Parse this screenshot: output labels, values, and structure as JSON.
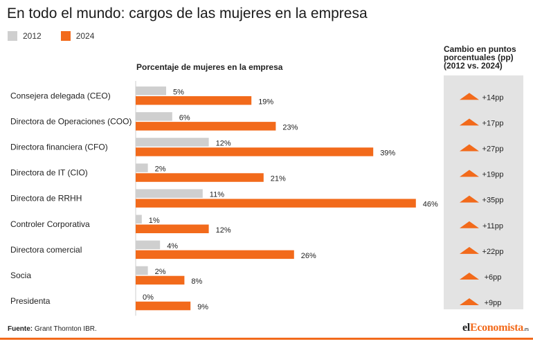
{
  "title": "En todo el mundo: cargos de las mujeres en la empresa",
  "legend": [
    {
      "label": "2012",
      "color": "#cfcfcf"
    },
    {
      "label": "2024",
      "color": "#f26a1b"
    }
  ],
  "subheading": "Porcentaje de mujeres en la empresa",
  "change_header": "Cambio en puntos porcentuales (pp) (2012 vs. 2024)",
  "change_icon": "up-triangle-icon",
  "source_label": "Fuente:",
  "source_text": "Grant Thornton IBR.",
  "brand": {
    "part1": "el",
    "part2": "Economista",
    "suffix": ".es"
  },
  "chart_data": {
    "type": "bar",
    "orientation": "horizontal",
    "categories": [
      "Consejera delegada (CEO)",
      "Directora de Operaciones (COO)",
      "Directora financiera (CFO)",
      "Directora de IT (CIO)",
      "Directora de RRHH",
      "Controler Corporativa",
      "Directora comercial",
      "Socia",
      "Presidenta"
    ],
    "series": [
      {
        "name": "2012",
        "color": "#cfcfcf",
        "values": [
          5,
          6,
          12,
          2,
          11,
          1,
          4,
          2,
          0
        ],
        "labels": [
          "5%",
          "6%",
          "12%",
          "2%",
          "11%",
          "1%",
          "4%",
          "2%",
          "0%"
        ]
      },
      {
        "name": "2024",
        "color": "#f26a1b",
        "values": [
          19,
          23,
          39,
          21,
          46,
          12,
          26,
          8,
          9
        ],
        "labels": [
          "19%",
          "23%",
          "39%",
          "21%",
          "46%",
          "12%",
          "26%",
          "8%",
          "9%"
        ]
      }
    ],
    "change": [
      "+14pp",
      "+17pp",
      "+27pp",
      "+19pp",
      "+35pp",
      "+11pp",
      "+22pp",
      "+6pp",
      "+9pp"
    ],
    "xlim": [
      0,
      46
    ],
    "grid": false,
    "legend_position": "top-left"
  }
}
